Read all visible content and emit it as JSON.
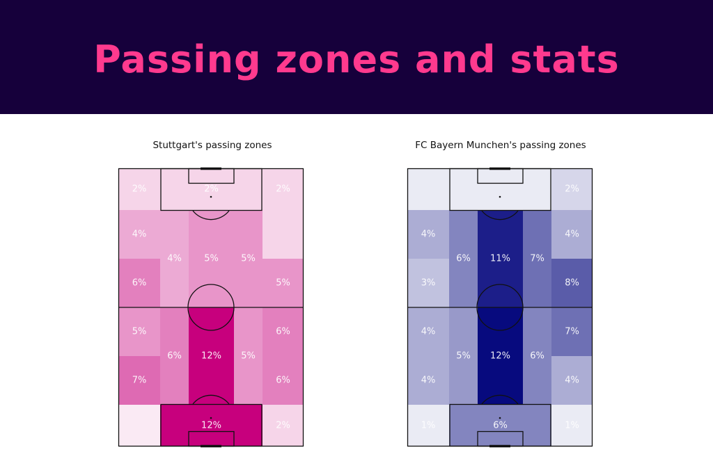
{
  "header": {
    "title": "Passing zones and stats",
    "background": "#16003b",
    "title_color": "#ff3a8e"
  },
  "chart_data": [
    {
      "type": "heatmap",
      "title": "Stuttgart's passing zones",
      "color": "#c7007d",
      "max_value": 12,
      "zones": [
        {
          "id": "top-left-wide",
          "label": "2%",
          "value": 2
        },
        {
          "id": "top-box",
          "label": "2%",
          "value": 2
        },
        {
          "id": "top-right-wide",
          "label": "2%",
          "value": 2
        },
        {
          "id": "upper-left-wide-1",
          "label": "4%",
          "value": 4
        },
        {
          "id": "upper-left-wide-2",
          "label": "6%",
          "value": 6
        },
        {
          "id": "upper-left-half",
          "label": "4%",
          "value": 4
        },
        {
          "id": "upper-center",
          "label": "5%",
          "value": 5
        },
        {
          "id": "upper-right-half",
          "label": "5%",
          "value": 5
        },
        {
          "id": "upper-right-wide-1",
          "label": "",
          "value": 2
        },
        {
          "id": "upper-right-wide-2",
          "label": "5%",
          "value": 5
        },
        {
          "id": "lower-left-wide-1",
          "label": "5%",
          "value": 5
        },
        {
          "id": "lower-left-wide-2",
          "label": "7%",
          "value": 7
        },
        {
          "id": "lower-left-half",
          "label": "6%",
          "value": 6
        },
        {
          "id": "lower-center",
          "label": "12%",
          "value": 12
        },
        {
          "id": "lower-right-half",
          "label": "5%",
          "value": 5
        },
        {
          "id": "lower-right-wide-1",
          "label": "6%",
          "value": 6
        },
        {
          "id": "lower-right-wide-2",
          "label": "6%",
          "value": 6
        },
        {
          "id": "bottom-left-wide",
          "label": "",
          "value": 1
        },
        {
          "id": "bottom-box",
          "label": "12%",
          "value": 12
        },
        {
          "id": "bottom-right-wide",
          "label": "2%",
          "value": 2
        }
      ]
    },
    {
      "type": "heatmap",
      "title": "FC Bayern Munchen's passing zones",
      "color": "#070a7e",
      "max_value": 12,
      "zones": [
        {
          "id": "top-left-wide",
          "label": "",
          "value": 1
        },
        {
          "id": "top-box",
          "label": "",
          "value": 1
        },
        {
          "id": "top-right-wide",
          "label": "2%",
          "value": 2
        },
        {
          "id": "upper-left-wide-1",
          "label": "4%",
          "value": 4
        },
        {
          "id": "upper-left-wide-2",
          "label": "3%",
          "value": 3
        },
        {
          "id": "upper-left-half",
          "label": "6%",
          "value": 6
        },
        {
          "id": "upper-center",
          "label": "11%",
          "value": 11
        },
        {
          "id": "upper-right-half",
          "label": "7%",
          "value": 7
        },
        {
          "id": "upper-right-wide-1",
          "label": "4%",
          "value": 4
        },
        {
          "id": "upper-right-wide-2",
          "label": "8%",
          "value": 8
        },
        {
          "id": "lower-left-wide-1",
          "label": "4%",
          "value": 4
        },
        {
          "id": "lower-left-wide-2",
          "label": "4%",
          "value": 4
        },
        {
          "id": "lower-left-half",
          "label": "5%",
          "value": 5
        },
        {
          "id": "lower-center",
          "label": "12%",
          "value": 12
        },
        {
          "id": "lower-right-half",
          "label": "6%",
          "value": 6
        },
        {
          "id": "lower-right-wide-1",
          "label": "7%",
          "value": 7
        },
        {
          "id": "lower-right-wide-2",
          "label": "4%",
          "value": 4
        },
        {
          "id": "bottom-left-wide",
          "label": "1%",
          "value": 1
        },
        {
          "id": "bottom-box",
          "label": "6%",
          "value": 6
        },
        {
          "id": "bottom-right-wide",
          "label": "1%",
          "value": 1
        }
      ]
    }
  ]
}
